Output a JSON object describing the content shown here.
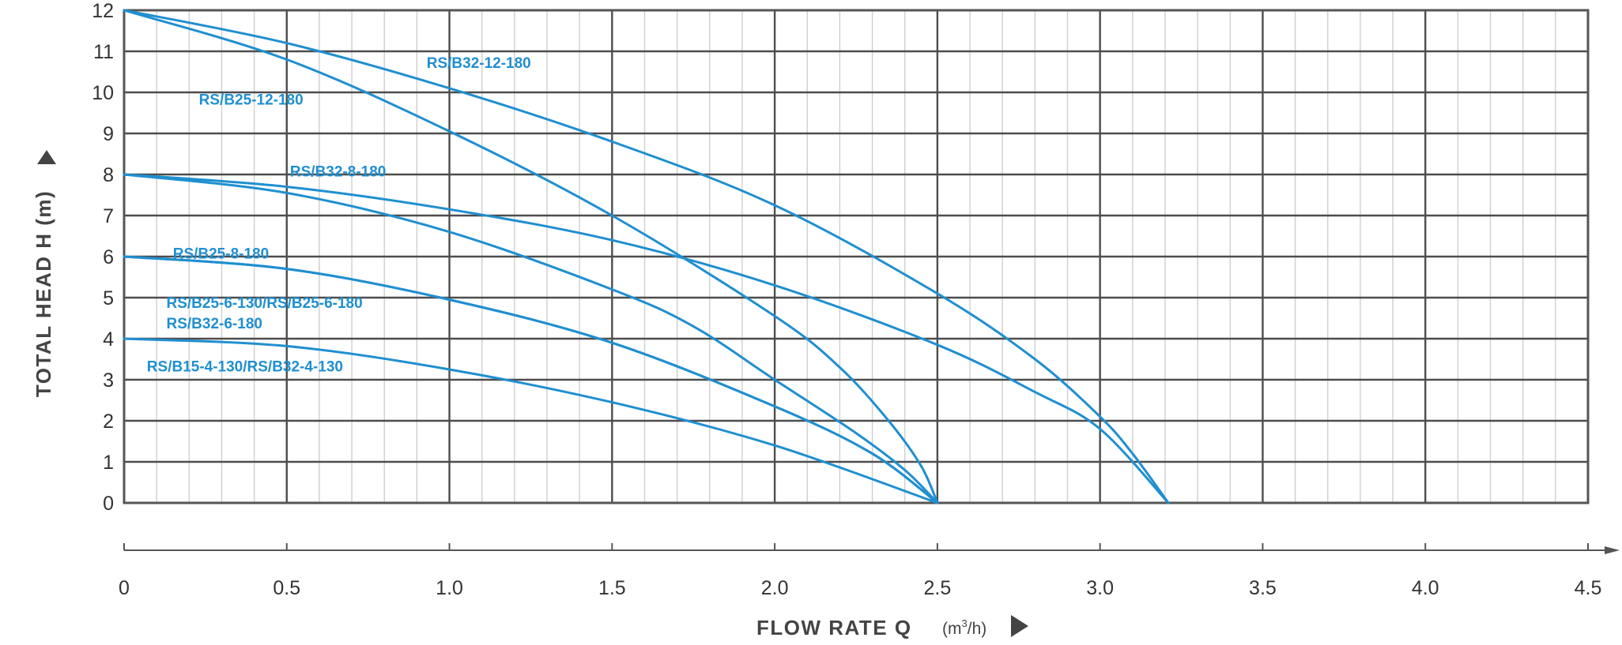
{
  "chart_data": {
    "type": "line",
    "title": "",
    "xlabel": "FLOW RATE Q",
    "xunit_prefix": "(m",
    "xunit_sup": "3",
    "xunit_suffix": "/h)",
    "ylabel": "TOTAL HEAD H (m)",
    "xlim": [
      0,
      4.5
    ],
    "ylim": [
      0,
      12
    ],
    "x_ticks": [
      "0",
      "0.5",
      "1.0",
      "1.5",
      "2.0",
      "2.5",
      "3.0",
      "3.5",
      "4.0",
      "4.5"
    ],
    "y_ticks": [
      "0",
      "1",
      "2",
      "3",
      "4",
      "5",
      "6",
      "7",
      "8",
      "9",
      "10",
      "11",
      "12"
    ],
    "grid": true,
    "series": [
      {
        "name": "RS/B32-12-180",
        "x": [
          0,
          0.5,
          1.0,
          1.5,
          2.0,
          2.5,
          2.8,
          3.0,
          3.1,
          3.21
        ],
        "y": [
          12,
          11.2,
          10.1,
          8.8,
          7.25,
          5.1,
          3.5,
          2.1,
          1.2,
          0
        ]
      },
      {
        "name": "RS/B25-12-180",
        "x": [
          0,
          0.5,
          1.0,
          1.5,
          2.0,
          2.2,
          2.35,
          2.45,
          2.5
        ],
        "y": [
          12,
          10.8,
          9.05,
          7.0,
          4.55,
          3.3,
          2.0,
          0.9,
          0
        ]
      },
      {
        "name": "RS/B32-8-180",
        "x": [
          0,
          0.5,
          1.0,
          1.5,
          2.0,
          2.5,
          2.8,
          3.0,
          3.21
        ],
        "y": [
          8,
          7.7,
          7.15,
          6.4,
          5.3,
          3.85,
          2.7,
          1.8,
          0
        ]
      },
      {
        "name": "RS/B25-8-180",
        "x": [
          0,
          0.5,
          1.0,
          1.5,
          1.75,
          2.0,
          2.25,
          2.4,
          2.5
        ],
        "y": [
          8,
          7.55,
          6.6,
          5.2,
          4.3,
          3.0,
          1.7,
          0.8,
          0
        ]
      },
      {
        "name": "RS/B25-6-130/RS/B25-6-180",
        "x": [
          0,
          0.5,
          1.0,
          1.5,
          2.0,
          2.3,
          2.5
        ],
        "y": [
          6,
          5.7,
          4.95,
          3.9,
          2.35,
          1.2,
          0
        ]
      },
      {
        "name": "RS/B32-6-180",
        "x": [
          0,
          0.5,
          1.0,
          1.5,
          2.0,
          2.3,
          2.5
        ],
        "y": [
          6,
          5.7,
          4.95,
          3.9,
          2.35,
          1.2,
          0
        ]
      },
      {
        "name": "RS/B15-4-130/RS/B32-4-130",
        "x": [
          0,
          0.5,
          1.0,
          1.5,
          2.0,
          2.5
        ],
        "y": [
          4,
          3.82,
          3.25,
          2.45,
          1.4,
          0
        ]
      }
    ],
    "curve_labels": [
      {
        "text": "RS/B32-12-180",
        "at": [
          0.93,
          10.6
        ]
      },
      {
        "text": "RS/B25-12-180",
        "at": [
          0.23,
          9.7
        ]
      },
      {
        "text": "RS/B32-8-180",
        "at": [
          0.51,
          7.95
        ]
      },
      {
        "text": "RS/B25-8-180",
        "at": [
          0.15,
          5.95
        ]
      },
      {
        "text": "RS/B25-6-130/RS/B25-6-180",
        "at": [
          0.13,
          4.75
        ]
      },
      {
        "text": "RS/B32-6-180",
        "at": [
          0.13,
          4.25
        ]
      },
      {
        "text": "RS/B15-4-130/RS/B32-4-130",
        "at": [
          0.07,
          3.2
        ]
      }
    ],
    "colors": {
      "curve": "#1f8fd0",
      "label": "#1f8fd0",
      "major_grid": "#4d4d4d",
      "minor_grid": "#cfcfcf",
      "axis": "#555555"
    }
  }
}
